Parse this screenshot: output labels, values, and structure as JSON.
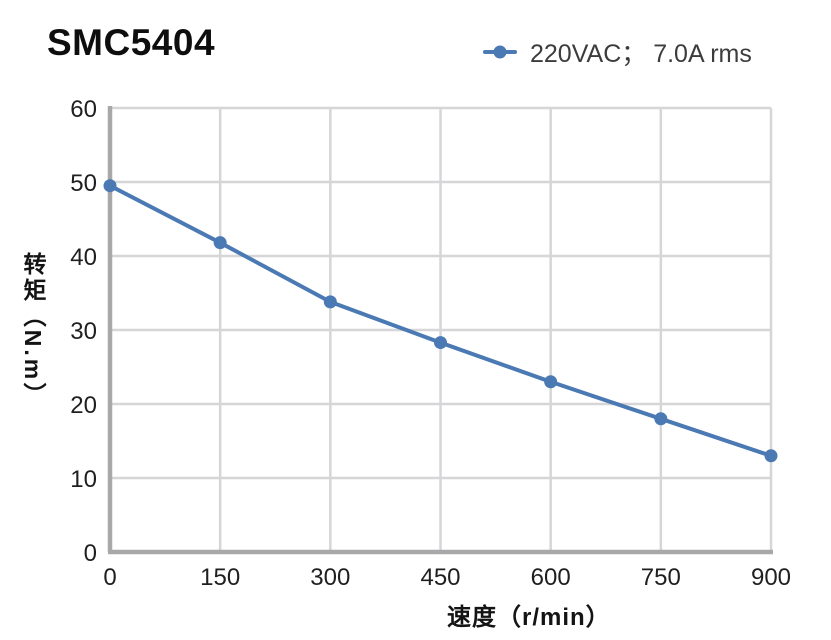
{
  "header": {
    "title": "SMC5404"
  },
  "legend": {
    "label": "220VAC； 7.0A rms",
    "marker_color": "#4a79b4"
  },
  "chart_data": {
    "type": "line",
    "title": "SMC5404",
    "series": [
      {
        "name": "220VAC； 7.0A rms",
        "x": [
          0,
          150,
          300,
          450,
          600,
          750,
          900
        ],
        "values": [
          49.5,
          41.8,
          33.8,
          28.3,
          23.0,
          18.0,
          13.0
        ]
      }
    ],
    "xlabel": "速度（r/min）",
    "ylabel": "转矩（N.m）",
    "xlim": [
      0,
      900
    ],
    "ylim": [
      0,
      60
    ],
    "x_ticks": [
      0,
      150,
      300,
      450,
      600,
      750,
      900
    ],
    "y_ticks": [
      0,
      10,
      20,
      30,
      40,
      50,
      60
    ],
    "grid": true,
    "legend_position": "top-right",
    "colors": {
      "line": "#4a79b4",
      "grid": "#d6d6d8",
      "axis": "#a8a8aa",
      "tick_text": "#1f1f1f"
    }
  }
}
